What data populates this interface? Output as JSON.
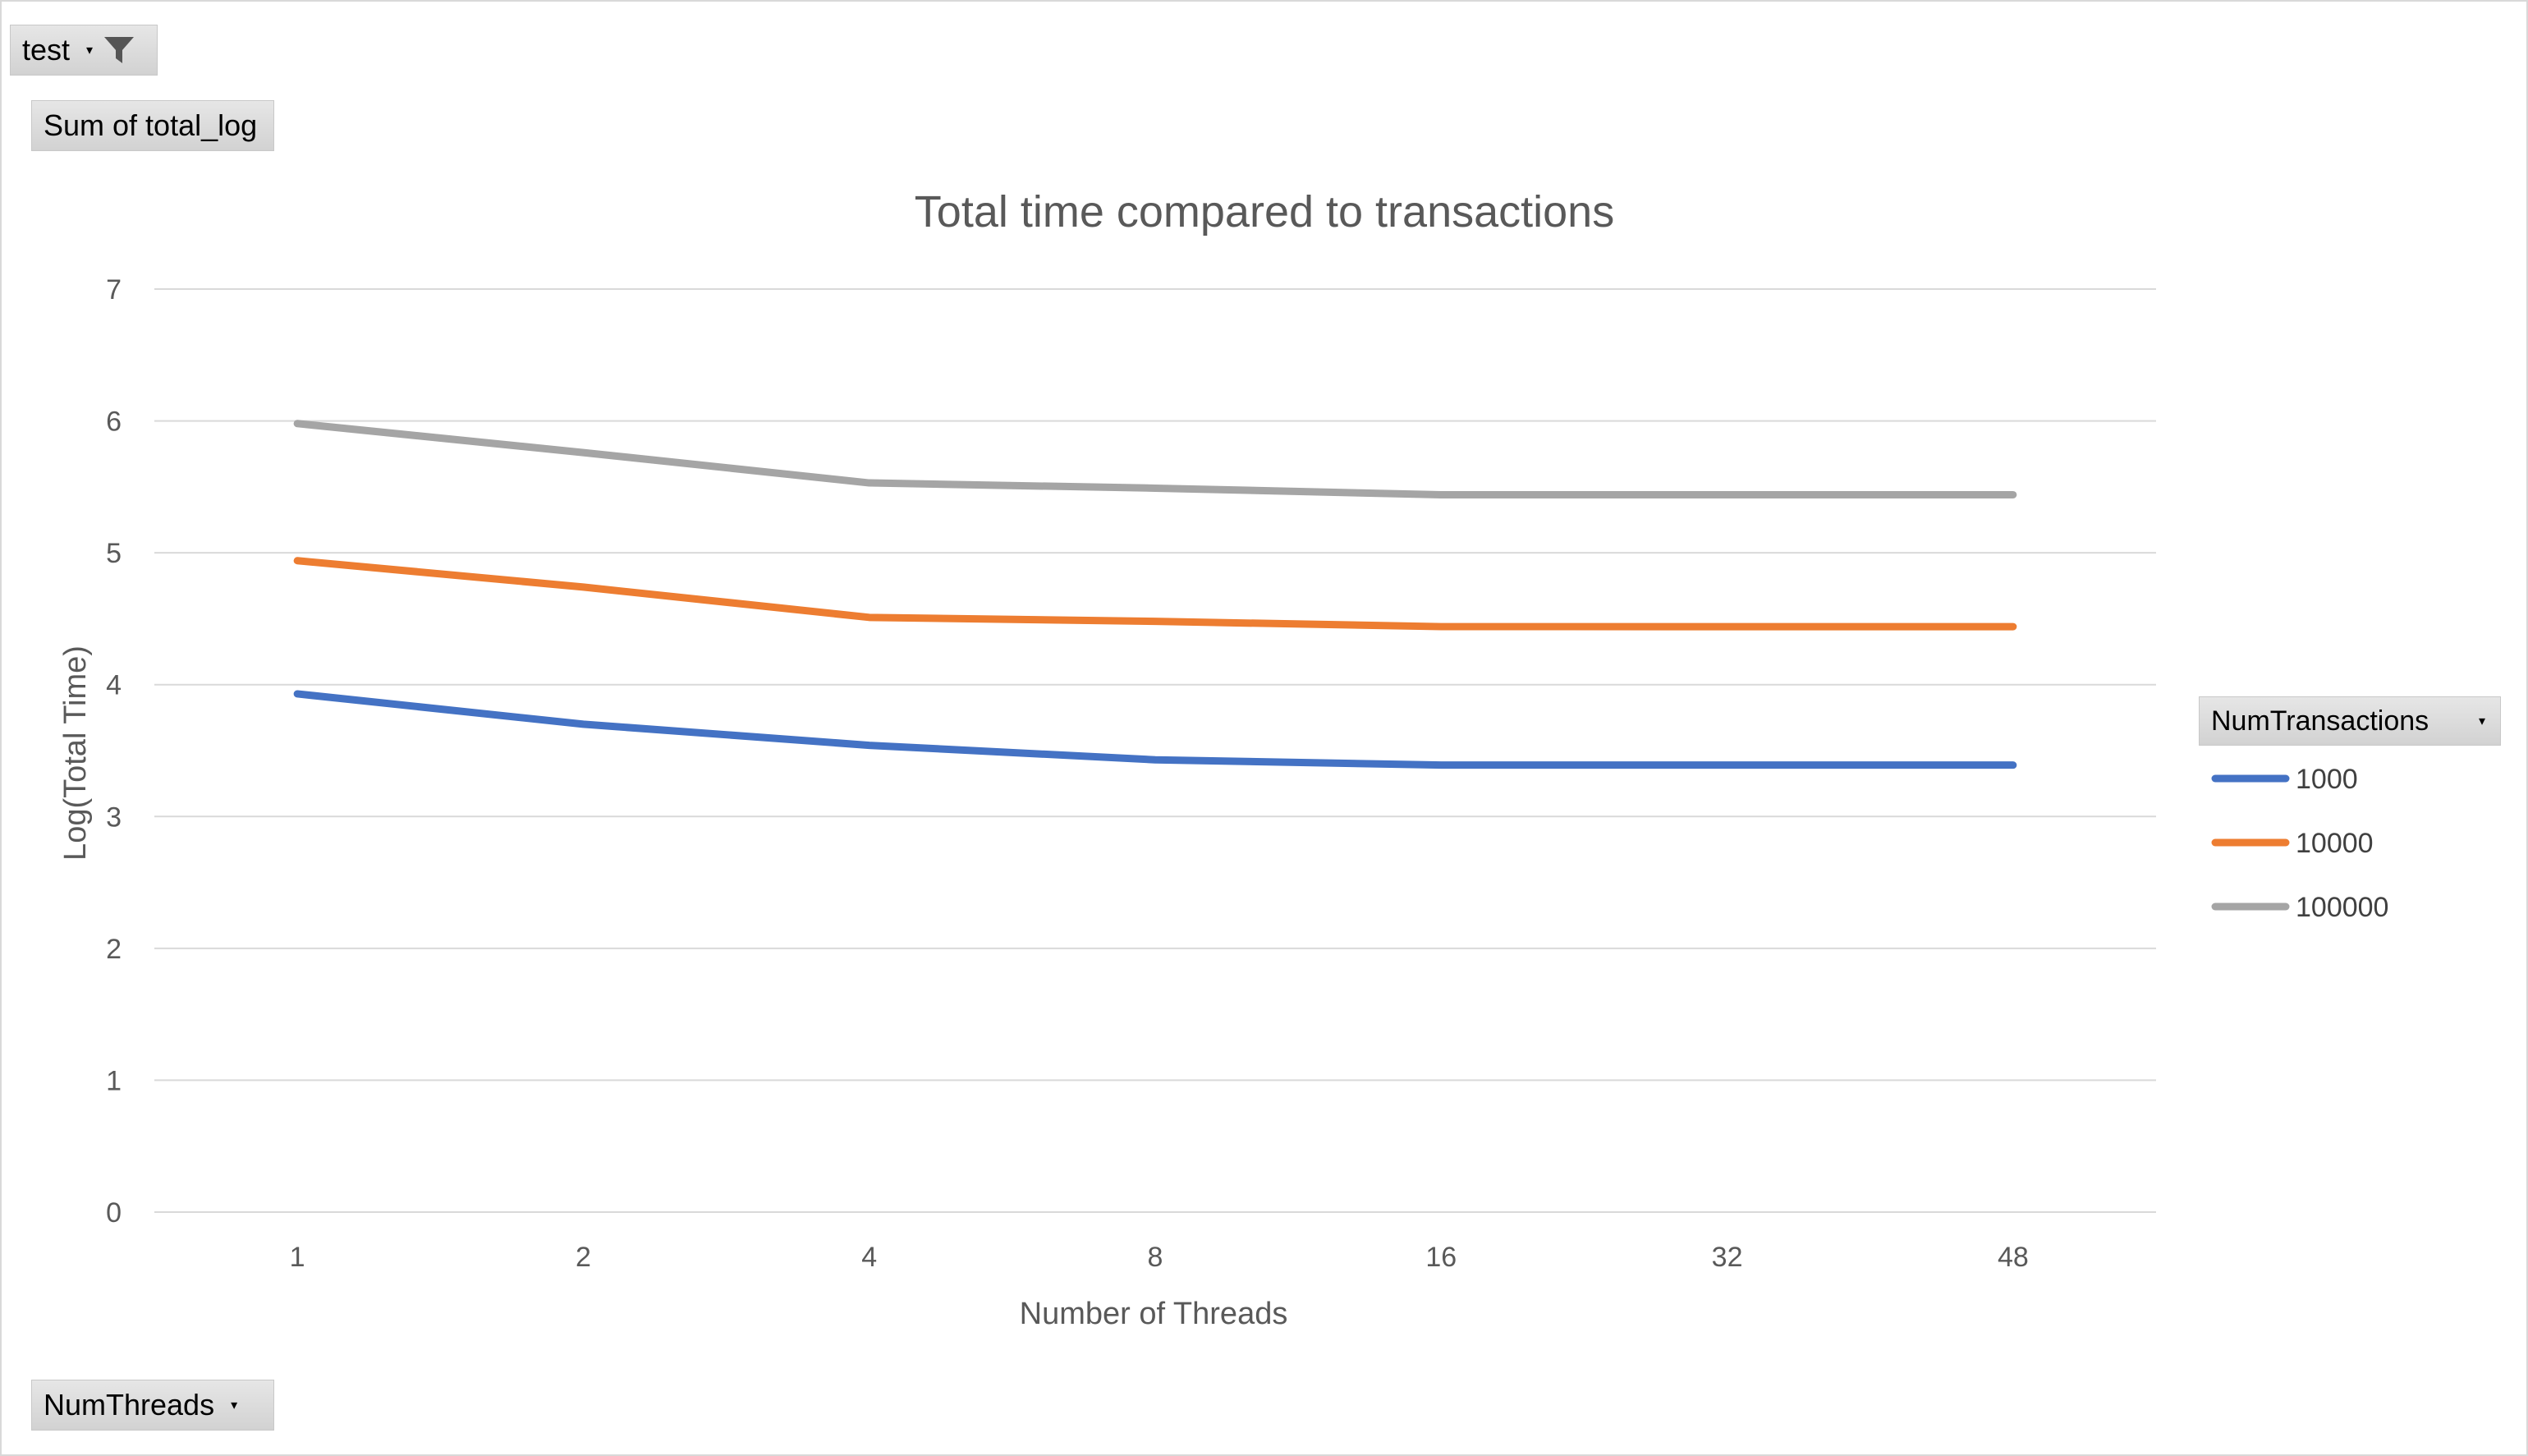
{
  "pivot": {
    "filter_label": "test",
    "values_label": "Sum of total_log",
    "axis_field_label": "NumThreads",
    "legend_field_label": "NumTransactions"
  },
  "colors": {
    "series_1000": "#4472c4",
    "series_10000": "#ed7d31",
    "series_100000": "#a5a5a5"
  },
  "chart_data": {
    "type": "line",
    "title": "Total time compared to transactions",
    "xlabel": "Number of Threads",
    "ylabel": "Log(Total Time)",
    "categories": [
      "1",
      "2",
      "4",
      "8",
      "16",
      "32",
      "48"
    ],
    "ylim": [
      0,
      7
    ],
    "yticks": [
      "0",
      "1",
      "2",
      "3",
      "4",
      "5",
      "6",
      "7"
    ],
    "grid": true,
    "legend_position": "right",
    "series": [
      {
        "name": "1000",
        "values": [
          3.93,
          3.7,
          3.54,
          3.43,
          3.39,
          3.39,
          3.39
        ]
      },
      {
        "name": "10000",
        "values": [
          4.94,
          4.74,
          4.51,
          4.48,
          4.44,
          4.44,
          4.44
        ]
      },
      {
        "name": "100000",
        "values": [
          5.98,
          5.76,
          5.53,
          5.49,
          5.44,
          5.44,
          5.44
        ]
      }
    ]
  }
}
